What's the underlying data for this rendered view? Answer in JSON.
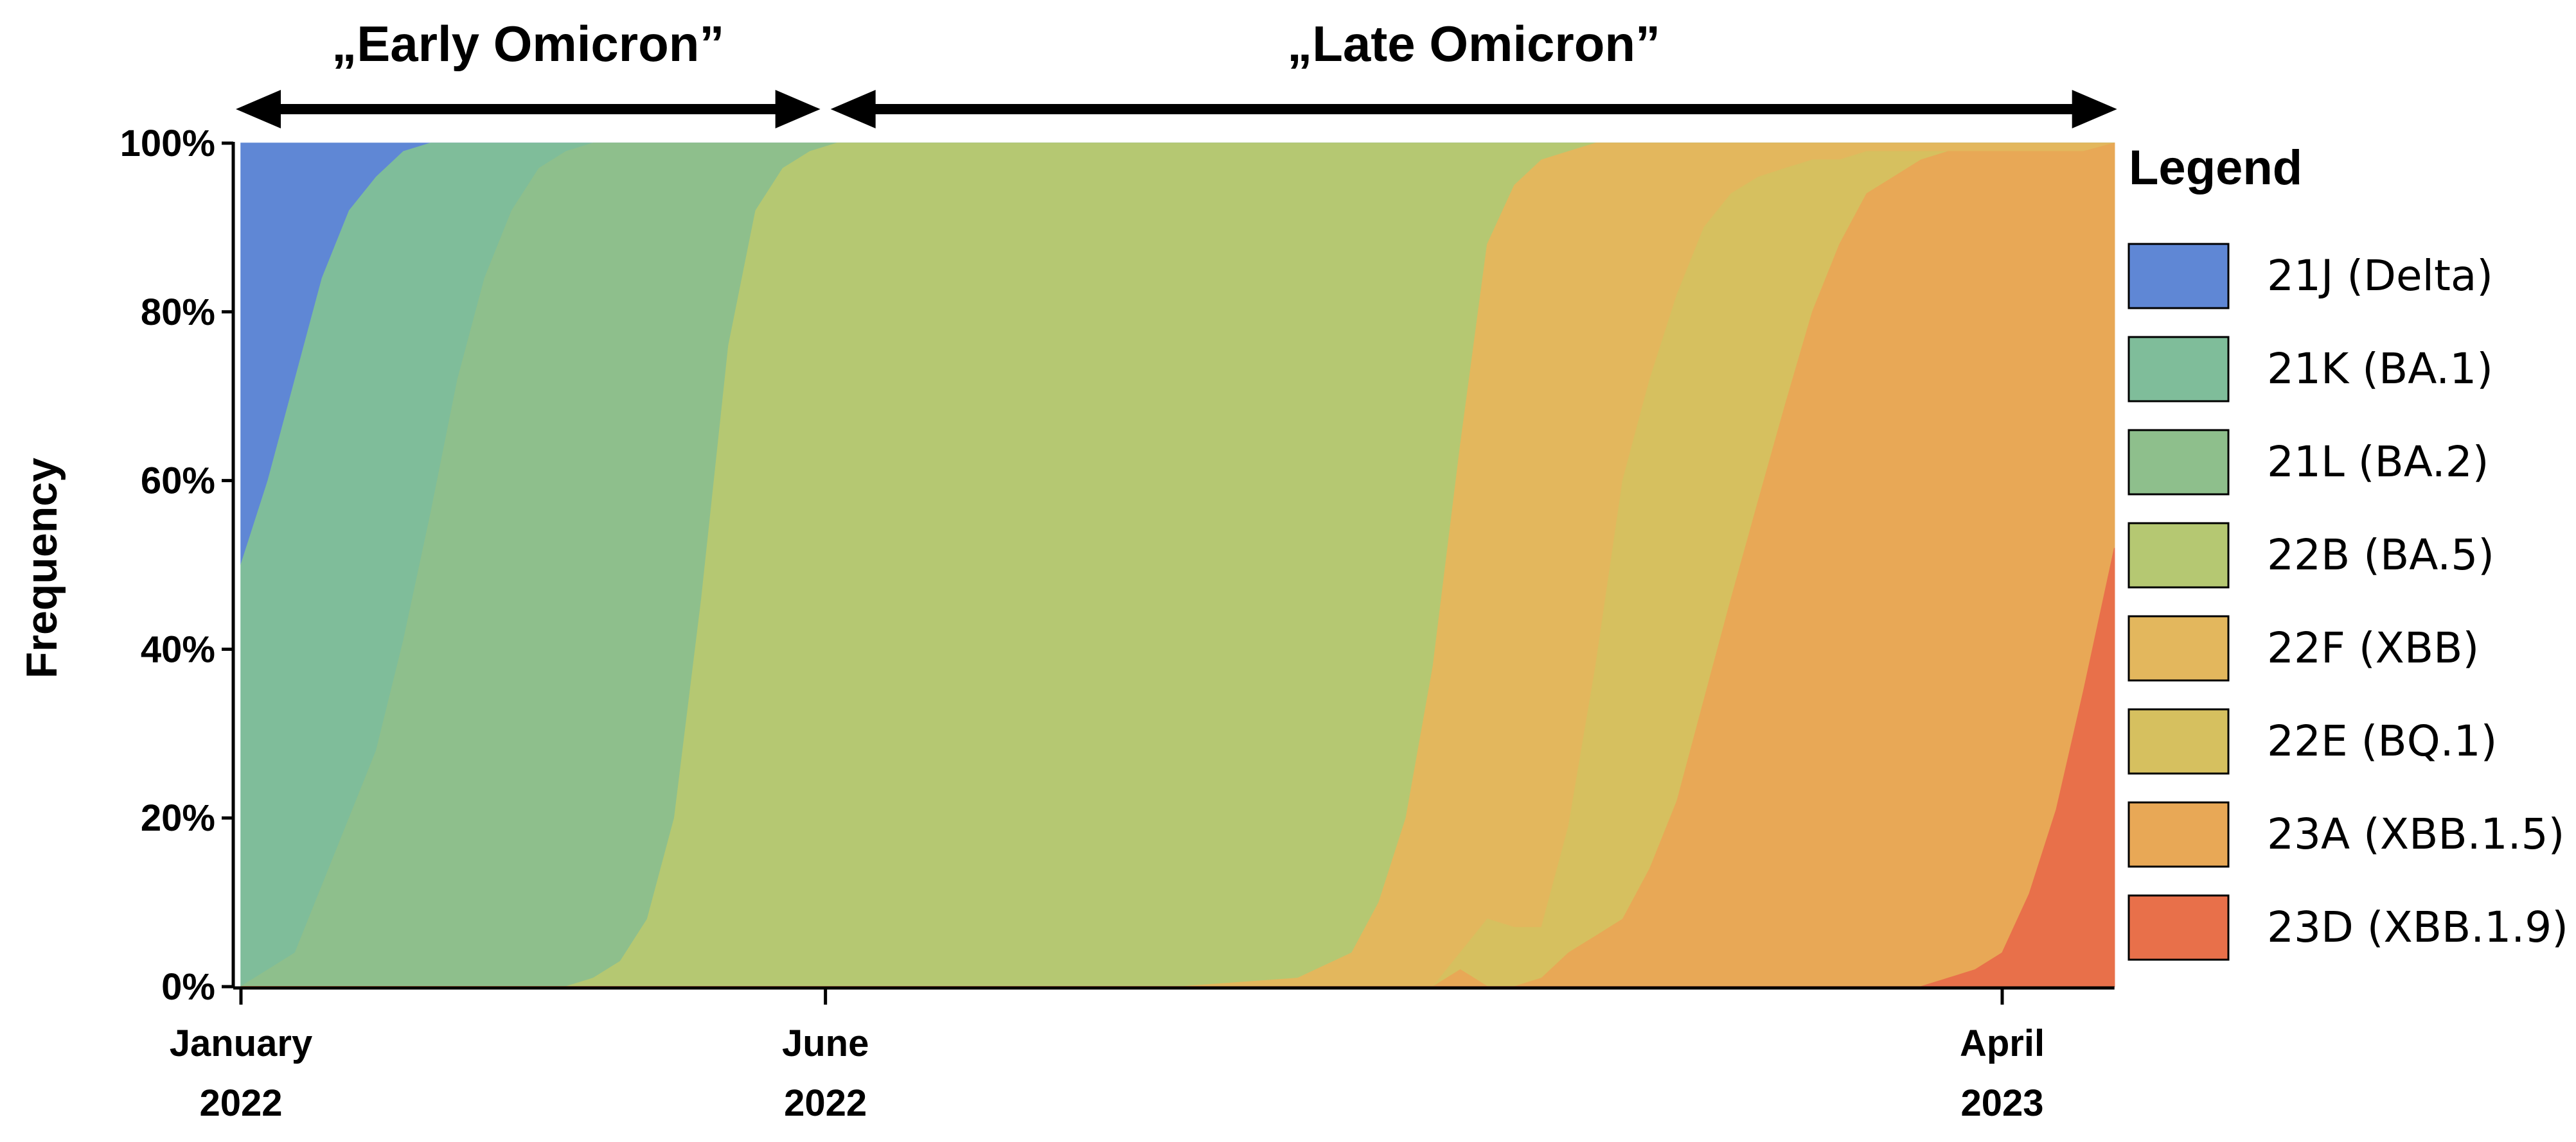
{
  "chart_data": {
    "type": "area",
    "stacked": "percent",
    "title": "",
    "xlabel": "",
    "ylabel": "Frequency",
    "ylim": [
      0,
      100
    ],
    "yticks": [
      "0%",
      "20%",
      "40%",
      "60%",
      "80%",
      "100%"
    ],
    "xlim": [
      "2022-01-01",
      "2023-04-30"
    ],
    "xticks": [
      {
        "date": "2022-01-01",
        "line1": "January",
        "line2": "2022"
      },
      {
        "date": "2022-06-01",
        "line1": "June",
        "line2": "2022"
      },
      {
        "date": "2023-04-01",
        "line1": "April",
        "line2": "2023"
      }
    ],
    "periods": [
      {
        "label": "„Early Omicron”",
        "start": "2022-01-01",
        "end": "2022-06-01"
      },
      {
        "label": "„Late Omicron”",
        "start": "2022-06-01",
        "end": "2023-04-30"
      }
    ],
    "legend_title": "Legend",
    "legend_position": "right",
    "x": [
      "2022-01-01",
      "2022-01-08",
      "2022-01-15",
      "2022-01-22",
      "2022-01-29",
      "2022-02-05",
      "2022-02-12",
      "2022-02-19",
      "2022-02-26",
      "2022-03-05",
      "2022-03-12",
      "2022-03-19",
      "2022-03-26",
      "2022-04-02",
      "2022-04-09",
      "2022-04-16",
      "2022-04-23",
      "2022-04-30",
      "2022-05-07",
      "2022-05-14",
      "2022-05-21",
      "2022-05-28",
      "2022-06-04",
      "2022-06-11",
      "2022-07-01",
      "2022-08-01",
      "2022-09-01",
      "2022-10-01",
      "2022-10-15",
      "2022-10-22",
      "2022-10-29",
      "2022-11-05",
      "2022-11-12",
      "2022-11-19",
      "2022-11-26",
      "2022-12-03",
      "2022-12-10",
      "2022-12-17",
      "2022-12-24",
      "2022-12-31",
      "2023-01-07",
      "2023-01-14",
      "2023-01-21",
      "2023-01-28",
      "2023-02-04",
      "2023-02-11",
      "2023-02-18",
      "2023-02-25",
      "2023-03-04",
      "2023-03-11",
      "2023-03-18",
      "2023-03-25",
      "2023-04-01",
      "2023-04-08",
      "2023-04-15",
      "2023-04-22",
      "2023-04-30"
    ],
    "series": [
      {
        "name": "21J (Delta)",
        "color": "#5f87d5",
        "values": [
          50,
          40,
          28,
          16,
          8,
          4,
          1,
          0,
          0,
          0,
          0,
          0,
          0,
          0,
          0,
          0,
          0,
          0,
          0,
          0,
          0,
          0,
          0,
          0,
          0,
          0,
          0,
          0,
          0,
          0,
          0,
          0,
          0,
          0,
          0,
          0,
          0,
          0,
          0,
          0,
          0,
          0,
          0,
          0,
          0,
          0,
          0,
          0,
          0,
          0,
          0,
          0,
          0,
          0,
          0,
          0,
          0
        ]
      },
      {
        "name": "21K (BA.1)",
        "color": "#7fbd9a",
        "values": [
          50,
          58,
          68,
          72,
          72,
          68,
          58,
          44,
          28,
          16,
          8,
          3,
          1,
          0,
          0,
          0,
          0,
          0,
          0,
          0,
          0,
          0,
          0,
          0,
          0,
          0,
          0,
          0,
          0,
          0,
          0,
          0,
          0,
          0,
          0,
          0,
          0,
          0,
          0,
          0,
          0,
          0,
          0,
          0,
          0,
          0,
          0,
          0,
          0,
          0,
          0,
          0,
          0,
          0,
          0,
          0,
          0
        ]
      },
      {
        "name": "21L (BA.2)",
        "color": "#8ebf8c",
        "values": [
          0,
          2,
          4,
          12,
          20,
          28,
          41,
          56,
          72,
          84,
          92,
          97,
          99,
          99,
          97,
          92,
          80,
          54,
          24,
          8,
          3,
          1,
          0,
          0,
          0,
          0,
          0,
          0,
          0,
          0,
          0,
          0,
          0,
          0,
          0,
          0,
          0,
          0,
          0,
          0,
          0,
          0,
          0,
          0,
          0,
          0,
          0,
          0,
          0,
          0,
          0,
          0,
          0,
          0,
          0,
          0,
          0
        ]
      },
      {
        "name": "22B (BA.5)",
        "color": "#b5c872",
        "values": [
          0,
          0,
          0,
          0,
          0,
          0,
          0,
          0,
          0,
          0,
          0,
          0,
          0,
          1,
          3,
          8,
          20,
          46,
          76,
          92,
          97,
          99,
          100,
          100,
          100,
          100,
          100,
          99,
          96,
          90,
          80,
          62,
          36,
          12,
          5,
          2,
          1,
          0,
          0,
          0,
          0,
          0,
          0,
          0,
          0,
          0,
          0,
          0,
          0,
          0,
          0,
          0,
          0,
          0,
          0,
          0,
          0
        ]
      },
      {
        "name": "22F (XBB)",
        "color": "#e3b75d",
        "values": [
          0,
          0,
          0,
          0,
          0,
          0,
          0,
          0,
          0,
          0,
          0,
          0,
          0,
          0,
          0,
          0,
          0,
          0,
          0,
          0,
          0,
          0,
          0,
          0,
          0,
          0,
          0,
          1,
          4,
          10,
          20,
          38,
          60,
          80,
          88,
          91,
          80,
          62,
          40,
          28,
          18,
          10,
          6,
          4,
          3,
          2,
          2,
          1,
          1,
          1,
          1,
          1,
          1,
          1,
          1,
          1,
          0
        ]
      },
      {
        "name": "22E (BQ.1)",
        "color": "#d6c05f",
        "values": [
          0,
          0,
          0,
          0,
          0,
          0,
          0,
          0,
          0,
          0,
          0,
          0,
          0,
          0,
          0,
          0,
          0,
          0,
          0,
          0,
          0,
          0,
          0,
          0,
          0,
          0,
          0,
          0,
          0,
          0,
          0,
          0,
          2,
          8,
          7,
          6,
          15,
          32,
          52,
          58,
          60,
          56,
          48,
          38,
          28,
          18,
          10,
          5,
          3,
          1,
          0,
          0,
          0,
          0,
          0,
          0,
          0
        ]
      },
      {
        "name": "23A (XBB.1.5)",
        "color": "#e8a856",
        "values": [
          0,
          0,
          0,
          0,
          0,
          0,
          0,
          0,
          0,
          0,
          0,
          0,
          0,
          0,
          0,
          0,
          0,
          0,
          0,
          0,
          0,
          0,
          0,
          0,
          0,
          0,
          0,
          0,
          0,
          0,
          0,
          0,
          2,
          0,
          0,
          1,
          4,
          6,
          8,
          14,
          22,
          34,
          46,
          57,
          69,
          80,
          88,
          94,
          96,
          98,
          98,
          97,
          95,
          88,
          78,
          64,
          48
        ]
      },
      {
        "name": "23D (XBB.1.9)",
        "color": "#e8704a",
        "values": [
          0,
          0,
          0,
          0,
          0,
          0,
          0,
          0,
          0,
          0,
          0,
          0,
          0,
          0,
          0,
          0,
          0,
          0,
          0,
          0,
          0,
          0,
          0,
          0,
          0,
          0,
          0,
          0,
          0,
          0,
          0,
          0,
          0,
          0,
          0,
          0,
          0,
          0,
          0,
          0,
          0,
          0,
          0,
          0,
          0,
          0,
          0,
          0,
          0,
          0,
          1,
          2,
          4,
          11,
          21,
          35,
          52
        ]
      }
    ]
  }
}
